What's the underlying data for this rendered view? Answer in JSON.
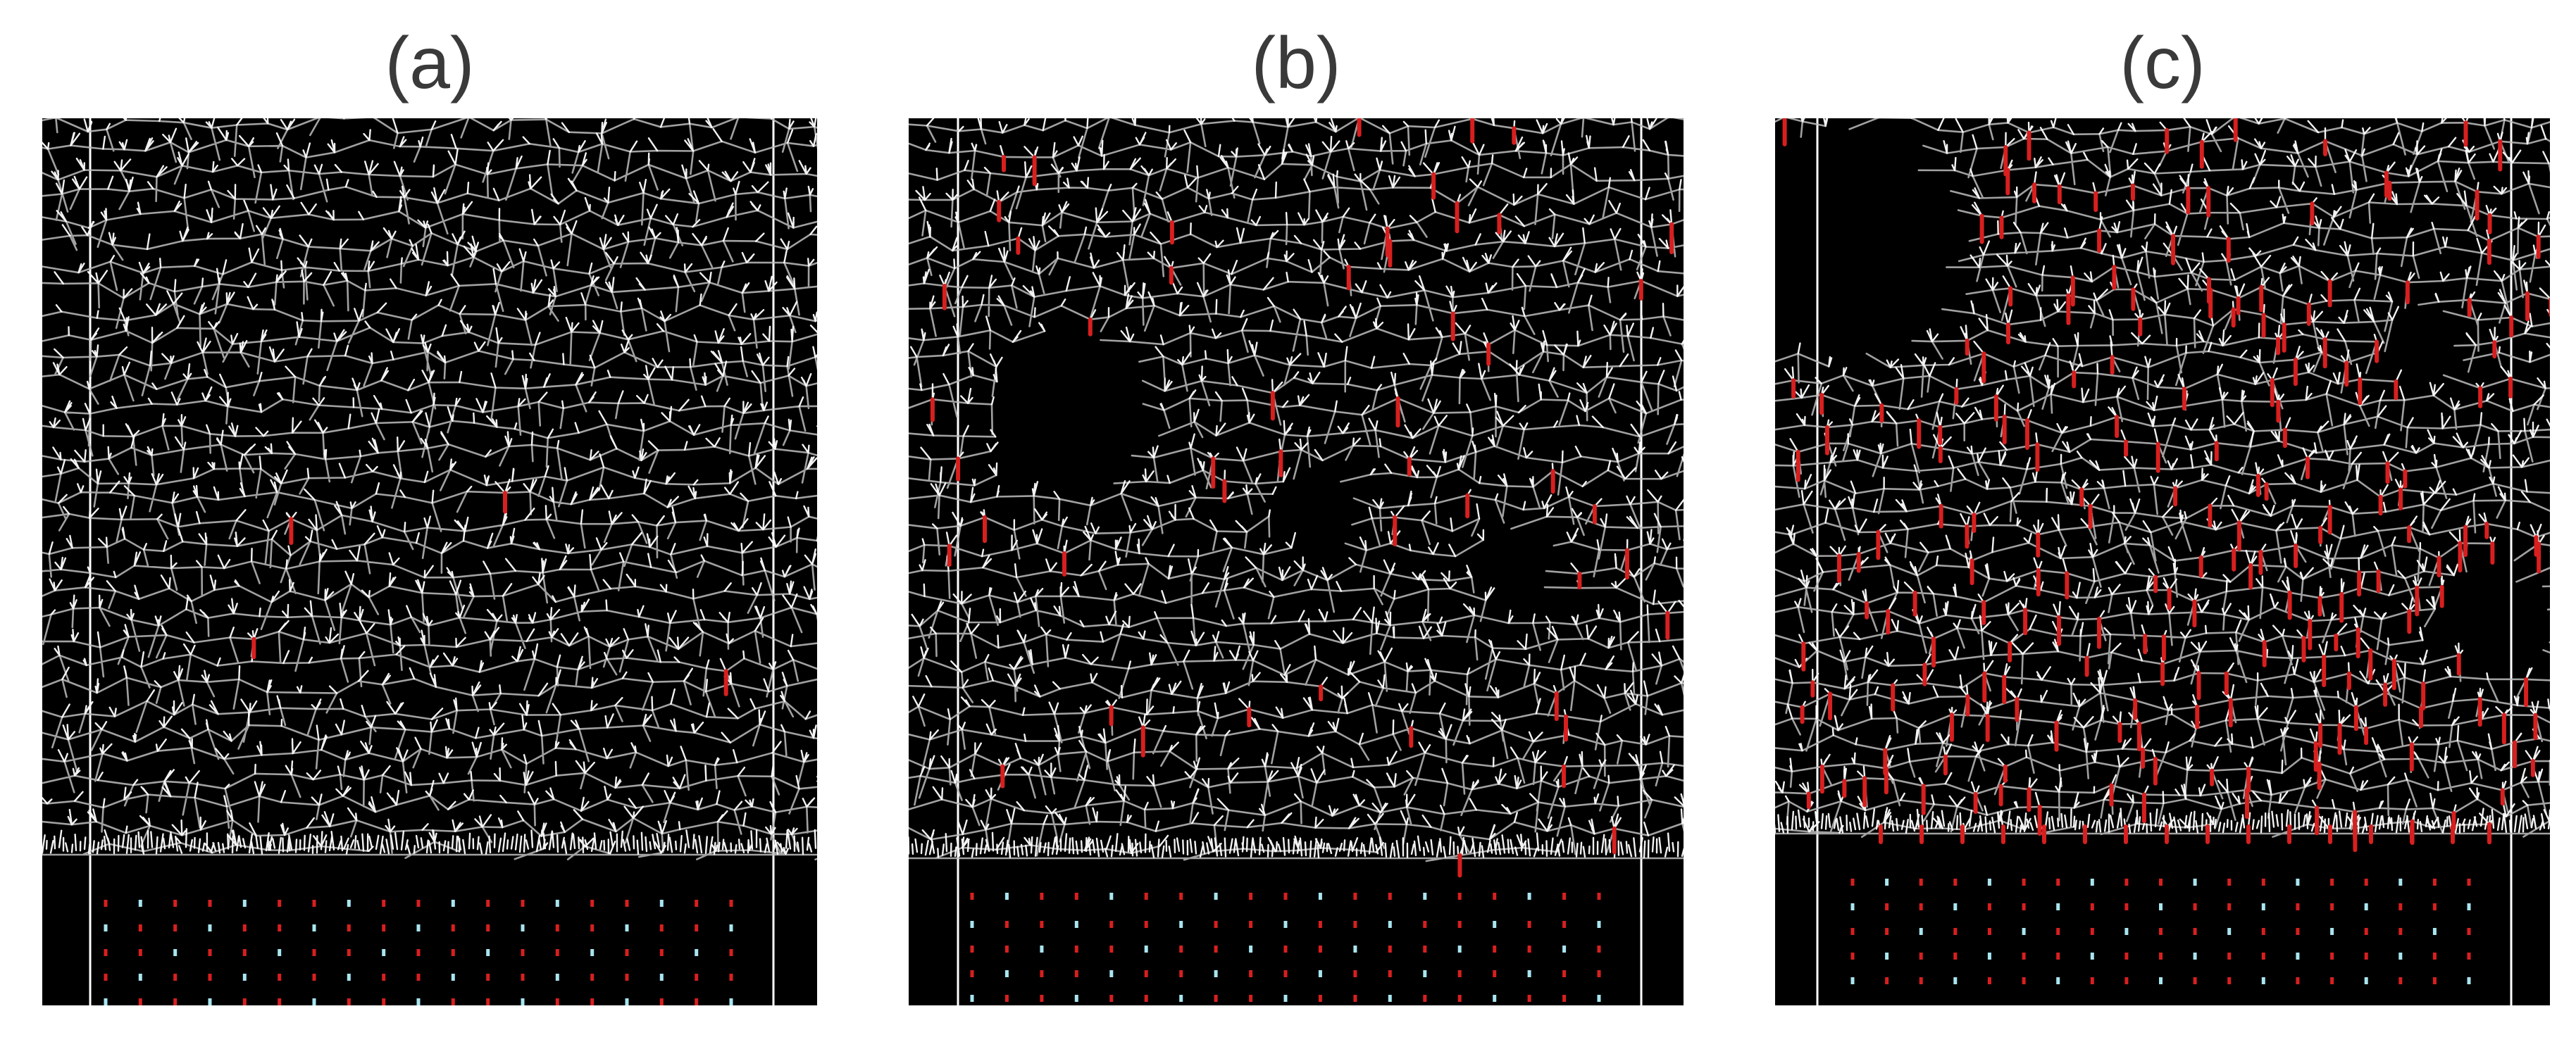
{
  "figure": {
    "panels": [
      {
        "id": "a",
        "label": "(a)",
        "red_segments": 4
      },
      {
        "id": "b",
        "label": "(b)",
        "red_segments": 55
      },
      {
        "id": "c",
        "label": "(c)",
        "red_segments": 260
      }
    ]
  },
  "colors": {
    "background": "#000000",
    "structure": "#bdbdbd",
    "tips": "#ffffff",
    "highlight": "#d81f1f",
    "boundary": "#ffffff",
    "marker_red": "#d81f1f",
    "marker_cyan": "#a8e6f0"
  }
}
